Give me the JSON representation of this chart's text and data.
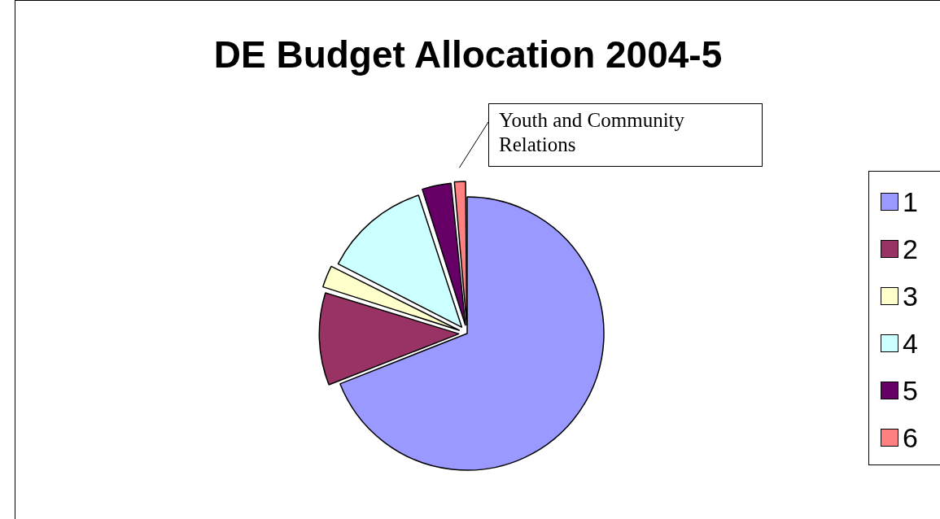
{
  "chart_data": {
    "type": "pie",
    "title": "DE Budget Allocation 2004-5",
    "categories": [
      "1",
      "2",
      "3",
      "4",
      "5",
      "6"
    ],
    "values": [
      69,
      10.8,
      2.7,
      12.5,
      3.5,
      1.5
    ],
    "colors": [
      "#9999ff",
      "#993366",
      "#ffffcc",
      "#ccffff",
      "#660066",
      "#ff8080"
    ],
    "legend": "right",
    "annotations": [
      "Youth and Community Relations"
    ]
  }
}
